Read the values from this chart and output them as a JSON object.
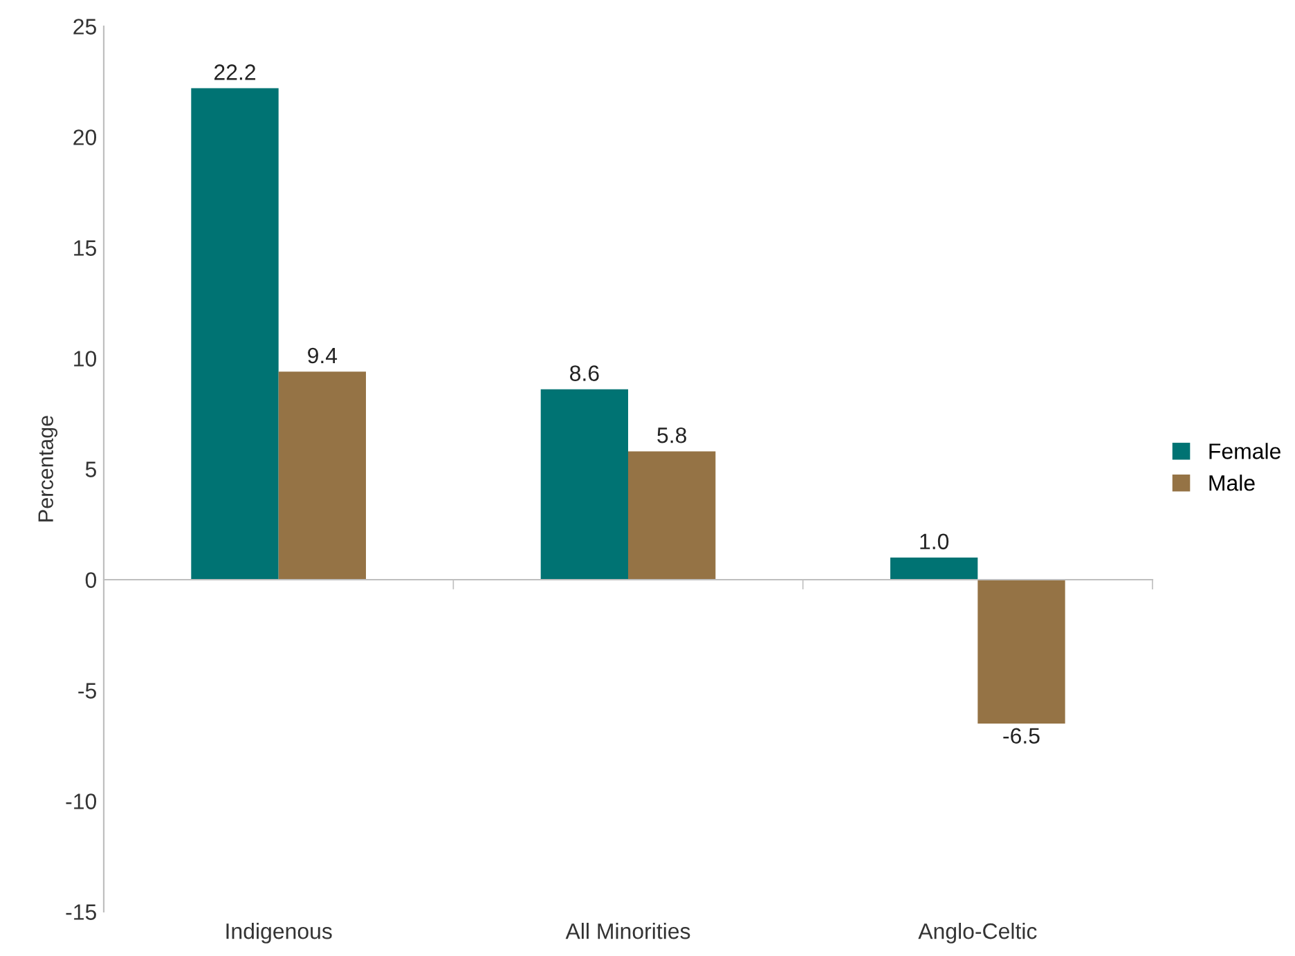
{
  "chart_data": {
    "type": "bar",
    "ylabel": "Percentage",
    "categories": [
      "Indigenous",
      "All Minorities",
      "Anglo-Celtic"
    ],
    "series": [
      {
        "name": "Female",
        "color": "#007373",
        "values": [
          22.2,
          8.6,
          1.0
        ],
        "value_labels": [
          "22.2",
          "8.6",
          "1.0"
        ]
      },
      {
        "name": "Male",
        "color": "#957345",
        "values": [
          9.4,
          5.8,
          -6.5
        ],
        "value_labels": [
          "9.4",
          "5.8",
          "-6.5"
        ]
      }
    ],
    "ylim": [
      -15,
      25
    ],
    "yticks": [
      -15,
      -10,
      -5,
      0,
      5,
      10,
      15,
      20,
      25
    ],
    "legend": "right"
  }
}
